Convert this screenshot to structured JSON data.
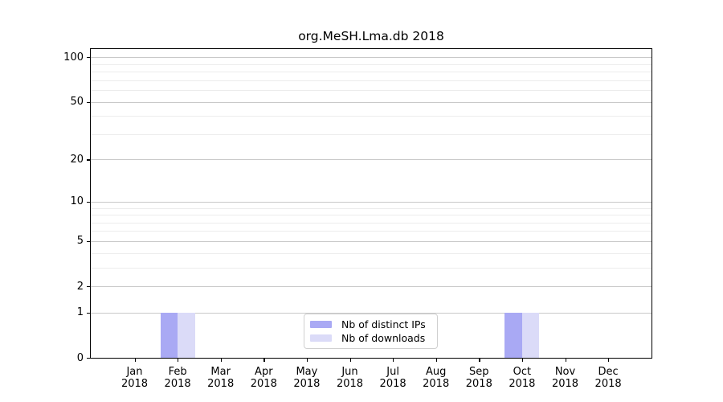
{
  "chart_data": {
    "type": "bar",
    "title": "org.MeSH.Lma.db 2018",
    "categories": [
      "Jan",
      "Feb",
      "Mar",
      "Apr",
      "May",
      "Jun",
      "Jul",
      "Aug",
      "Sep",
      "Oct",
      "Nov",
      "Dec"
    ],
    "year": "2018",
    "series": [
      {
        "name": "Nb of distinct IPs",
        "color": "#a9a9f4",
        "values": [
          0,
          1,
          0,
          0,
          0,
          0,
          0,
          0,
          0,
          1,
          0,
          0
        ]
      },
      {
        "name": "Nb of downloads",
        "color": "#dbdbf8",
        "values": [
          0,
          1,
          0,
          0,
          0,
          0,
          0,
          0,
          0,
          1,
          0,
          0
        ]
      }
    ],
    "y_axis": {
      "scale": "log10(1+value)",
      "ticks": [
        0,
        1,
        2,
        5,
        10,
        20,
        50,
        100
      ],
      "minor_gridlines": [
        3,
        4,
        6,
        7,
        8,
        9,
        30,
        40,
        60,
        70,
        80,
        90
      ],
      "top_value": 113
    },
    "legend_position": "lower center",
    "colors": {
      "major_grid": "#c9c9c9",
      "minor_grid": "#ececec",
      "axis": "#000000",
      "background": "#ffffff"
    }
  }
}
